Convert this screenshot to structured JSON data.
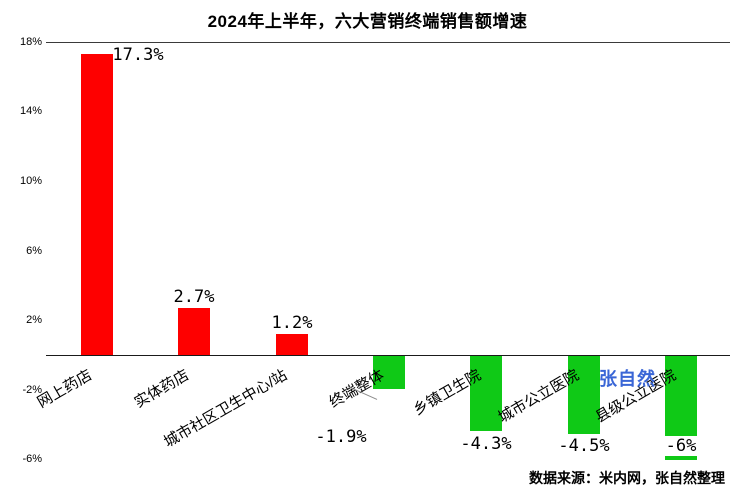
{
  "title": "2024年上半年，六大营销终端销售额增速",
  "source_note": "数据来源：米内网，张自然整理",
  "watermark": "张自然",
  "colors": {
    "positive_bar": "#fe0000",
    "negative_bar": "#0fc916",
    "watermark": "#3a66d6",
    "axis_line": "#333333"
  },
  "chart_data": {
    "type": "bar",
    "categories": [
      "网上药店",
      "实体药店",
      "城市社区卫生中心/站",
      "终端整体",
      "乡镇卫生院",
      "城市公立医院",
      "县级公立医院"
    ],
    "values": [
      17.3,
      2.7,
      1.2,
      -1.9,
      -4.3,
      -4.5,
      -6
    ],
    "labels": [
      "17.3%",
      "2.7%",
      "1.2%",
      "-1.9%",
      "-4.3%",
      "-4.5%",
      "-6%"
    ],
    "title": "2024年上半年，六大营销终端销售额增速",
    "xlabel": "",
    "ylabel": "",
    "ylim": [
      -6,
      18
    ],
    "yticks": [
      "18%",
      "14%",
      "10%",
      "6%",
      "2%",
      "-2%",
      "-6%"
    ],
    "ytick_values": [
      18,
      14,
      10,
      6,
      2,
      -2,
      -6
    ],
    "grid": false,
    "legend": "none",
    "label_dx": [
      41,
      0,
      0,
      -48,
      0,
      0,
      0
    ],
    "label_dy": [
      12,
      0,
      0,
      0,
      0,
      0,
      0
    ]
  }
}
